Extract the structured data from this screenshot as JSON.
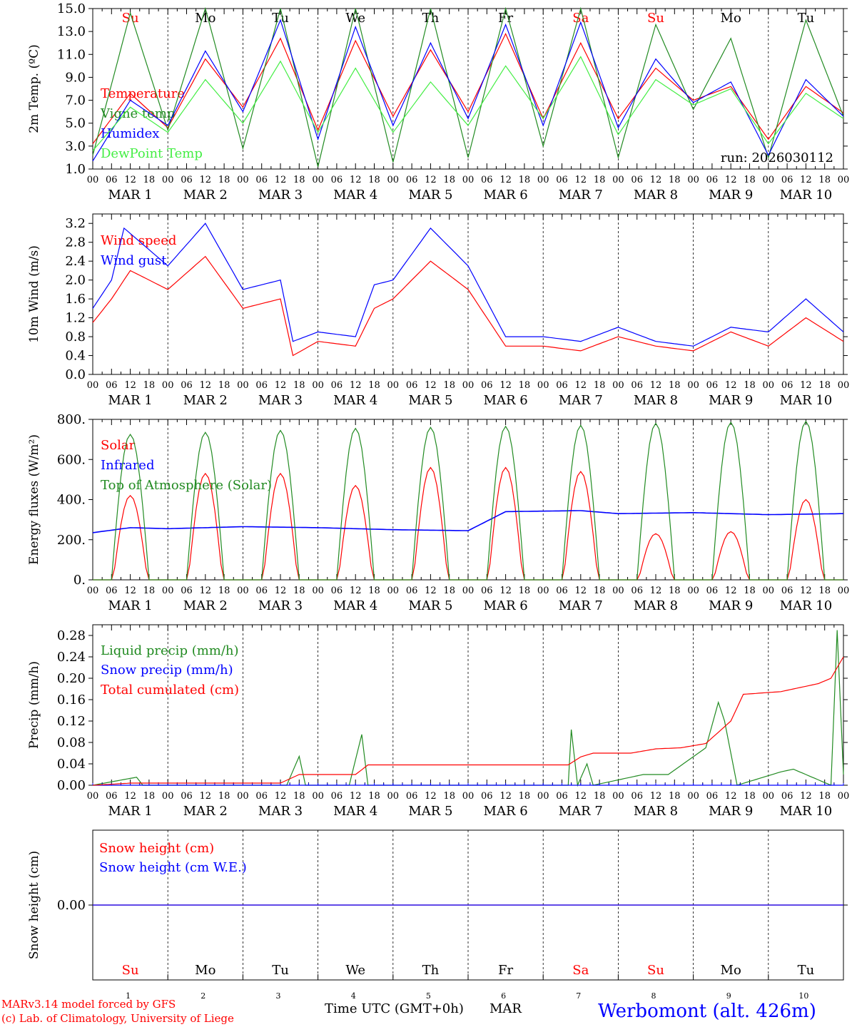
{
  "run_label": "run: 2026030112",
  "footer": {
    "model": "MARv3.14 model forced by GFS",
    "copyright": "(c) Lab. of Climatology, University of Liege",
    "time_axis": "Time UTC (GMT+0h)",
    "month": "MAR",
    "station": "Werbomont (alt. 426m)"
  },
  "days": [
    {
      "num": "1",
      "abbr": "Su",
      "weekend": true
    },
    {
      "num": "2",
      "abbr": "Mo",
      "weekend": false
    },
    {
      "num": "3",
      "abbr": "Tu",
      "weekend": false
    },
    {
      "num": "4",
      "abbr": "We",
      "weekend": false
    },
    {
      "num": "5",
      "abbr": "Th",
      "weekend": false
    },
    {
      "num": "6",
      "abbr": "Fr",
      "weekend": false
    },
    {
      "num": "7",
      "abbr": "Sa",
      "weekend": true
    },
    {
      "num": "8",
      "abbr": "Su",
      "weekend": true
    },
    {
      "num": "9",
      "abbr": "Mo",
      "weekend": false
    },
    {
      "num": "10",
      "abbr": "Tu",
      "weekend": false
    }
  ],
  "hour_ticks": [
    "00",
    "06",
    "12",
    "18"
  ],
  "final_tick": "00",
  "colors": {
    "red": "#ff0000",
    "green": "#228b22",
    "blue": "#0000ff",
    "lightgreen": "#44ee44",
    "black": "#000000"
  },
  "chart_data": [
    {
      "type": "line",
      "ylabel": "2m Temp. (ºC)",
      "ylim": [
        1,
        15
      ],
      "yticks": [
        "1.0",
        "3.0",
        "5.0",
        "7.0",
        "9.0",
        "11.0",
        "13.0",
        "15.0"
      ],
      "series": [
        {
          "name": "Temperature",
          "color": "#ff0000",
          "points": [
            [
              0,
              3.2
            ],
            [
              12,
              7.6
            ],
            [
              24,
              4.6
            ],
            [
              36,
              10.6
            ],
            [
              48,
              6.4
            ],
            [
              60,
              12.4
            ],
            [
              72,
              4.4
            ],
            [
              84,
              12.2
            ],
            [
              96,
              5.6
            ],
            [
              108,
              11.4
            ],
            [
              120,
              6.0
            ],
            [
              132,
              12.8
            ],
            [
              144,
              5.4
            ],
            [
              156,
              12.0
            ],
            [
              168,
              5.4
            ],
            [
              180,
              9.8
            ],
            [
              192,
              7.0
            ],
            [
              204,
              8.2
            ],
            [
              216,
              3.6
            ],
            [
              228,
              8.2
            ],
            [
              240,
              5.9
            ]
          ]
        },
        {
          "name": "Vigne temp",
          "color": "#228b22",
          "points": [
            [
              0,
              2.2
            ],
            [
              12,
              14.6
            ],
            [
              24,
              4.4
            ],
            [
              36,
              15.0
            ],
            [
              48,
              2.8
            ],
            [
              60,
              15.0
            ],
            [
              72,
              1.2
            ],
            [
              84,
              15.0
            ],
            [
              96,
              1.6
            ],
            [
              108,
              15.0
            ],
            [
              120,
              2.0
            ],
            [
              132,
              15.0
            ],
            [
              144,
              3.0
            ],
            [
              156,
              15.0
            ],
            [
              168,
              2.0
            ],
            [
              180,
              13.6
            ],
            [
              192,
              6.2
            ],
            [
              204,
              12.4
            ],
            [
              216,
              2.0
            ],
            [
              228,
              14.0
            ],
            [
              240,
              5.6
            ]
          ]
        },
        {
          "name": "Humidex",
          "color": "#0000ff",
          "points": [
            [
              0,
              1.7
            ],
            [
              12,
              7.0
            ],
            [
              24,
              4.8
            ],
            [
              36,
              11.3
            ],
            [
              48,
              6.0
            ],
            [
              60,
              14.0
            ],
            [
              72,
              3.6
            ],
            [
              84,
              13.4
            ],
            [
              96,
              4.8
            ],
            [
              108,
              12.0
            ],
            [
              120,
              5.4
            ],
            [
              132,
              13.6
            ],
            [
              144,
              4.8
            ],
            [
              156,
              13.8
            ],
            [
              168,
              4.6
            ],
            [
              180,
              10.6
            ],
            [
              192,
              6.8
            ],
            [
              204,
              8.6
            ],
            [
              216,
              2.2
            ],
            [
              228,
              8.8
            ],
            [
              240,
              5.6
            ]
          ]
        },
        {
          "name": "DewPoint Temp",
          "color": "#44ee44",
          "points": [
            [
              0,
              2.6
            ],
            [
              12,
              6.4
            ],
            [
              24,
              4.2
            ],
            [
              36,
              8.8
            ],
            [
              48,
              5.0
            ],
            [
              60,
              10.4
            ],
            [
              72,
              4.2
            ],
            [
              84,
              9.8
            ],
            [
              96,
              4.2
            ],
            [
              108,
              8.6
            ],
            [
              120,
              4.8
            ],
            [
              132,
              10.0
            ],
            [
              144,
              5.4
            ],
            [
              156,
              10.8
            ],
            [
              168,
              4.0
            ],
            [
              180,
              8.8
            ],
            [
              192,
              6.6
            ],
            [
              204,
              8.0
            ],
            [
              216,
              3.2
            ],
            [
              228,
              7.6
            ],
            [
              240,
              5.4
            ]
          ]
        }
      ]
    },
    {
      "type": "line",
      "ylabel": "10m Wind (m/s)",
      "ylim": [
        0,
        3.4
      ],
      "yticks": [
        "0.0",
        "0.4",
        "0.8",
        "1.2",
        "1.6",
        "2.0",
        "2.4",
        "2.8",
        "3.2"
      ],
      "series": [
        {
          "name": "Wind speed",
          "color": "#ff0000",
          "points": [
            [
              0,
              1.1
            ],
            [
              6,
              1.6
            ],
            [
              12,
              2.2
            ],
            [
              24,
              1.8
            ],
            [
              36,
              2.5
            ],
            [
              48,
              1.4
            ],
            [
              60,
              1.6
            ],
            [
              64,
              0.4
            ],
            [
              72,
              0.7
            ],
            [
              84,
              0.6
            ],
            [
              90,
              1.4
            ],
            [
              96,
              1.6
            ],
            [
              108,
              2.4
            ],
            [
              120,
              1.8
            ],
            [
              132,
              0.6
            ],
            [
              144,
              0.6
            ],
            [
              156,
              0.5
            ],
            [
              168,
              0.8
            ],
            [
              180,
              0.6
            ],
            [
              192,
              0.5
            ],
            [
              204,
              0.9
            ],
            [
              216,
              0.6
            ],
            [
              228,
              1.2
            ],
            [
              240,
              0.7
            ]
          ]
        },
        {
          "name": "Wind gust",
          "color": "#0000ff",
          "points": [
            [
              0,
              1.4
            ],
            [
              6,
              2.0
            ],
            [
              10,
              3.1
            ],
            [
              24,
              2.3
            ],
            [
              36,
              3.2
            ],
            [
              48,
              1.8
            ],
            [
              60,
              2.0
            ],
            [
              64,
              0.7
            ],
            [
              72,
              0.9
            ],
            [
              84,
              0.8
            ],
            [
              90,
              1.9
            ],
            [
              96,
              2.0
            ],
            [
              108,
              3.1
            ],
            [
              120,
              2.3
            ],
            [
              132,
              0.8
            ],
            [
              144,
              0.8
            ],
            [
              156,
              0.7
            ],
            [
              168,
              1.0
            ],
            [
              180,
              0.7
            ],
            [
              192,
              0.6
            ],
            [
              204,
              1.0
            ],
            [
              216,
              0.9
            ],
            [
              228,
              1.6
            ],
            [
              240,
              0.9
            ]
          ]
        }
      ]
    },
    {
      "type": "line",
      "ylabel": "Energy fluxes (W/m²)",
      "ylim": [
        0,
        800
      ],
      "yticks": [
        "0.",
        "200.",
        "400.",
        "600.",
        "800."
      ],
      "series": [
        {
          "name": "Solar",
          "color": "#ff0000",
          "peaks": [
            420,
            530,
            530,
            470,
            560,
            560,
            540,
            230,
            240,
            400
          ]
        },
        {
          "name": "Infrared",
          "color": "#0000ff",
          "points": [
            [
              0,
              235
            ],
            [
              12,
              260
            ],
            [
              24,
              255
            ],
            [
              48,
              265
            ],
            [
              72,
              260
            ],
            [
              96,
              250
            ],
            [
              120,
              245
            ],
            [
              132,
              340
            ],
            [
              156,
              345
            ],
            [
              168,
              330
            ],
            [
              192,
              335
            ],
            [
              216,
              325
            ],
            [
              240,
              330
            ]
          ]
        },
        {
          "name": "Top of Atmosphere (Solar)",
          "color": "#228b22",
          "peaks": [
            725,
            735,
            745,
            755,
            760,
            765,
            770,
            780,
            785,
            790
          ]
        }
      ]
    },
    {
      "type": "line",
      "ylabel": "Precip (mm/h)",
      "ylim": [
        0,
        0.3
      ],
      "yticks": [
        "0.00",
        "0.04",
        "0.08",
        "0.12",
        "0.16",
        "0.20",
        "0.24",
        "0.28"
      ],
      "series": [
        {
          "name": "Liquid precip (mm/h)",
          "color": "#228b22",
          "points": [
            [
              0,
              0
            ],
            [
              14,
              0.015
            ],
            [
              16,
              0
            ],
            [
              62,
              0
            ],
            [
              66,
              0.054
            ],
            [
              68,
              0
            ],
            [
              82,
              0
            ],
            [
              86,
              0.095
            ],
            [
              88,
              0
            ],
            [
              152,
              0
            ],
            [
              153,
              0.104
            ],
            [
              155,
              0
            ],
            [
              158,
              0.04
            ],
            [
              160,
              0
            ],
            [
              176,
              0.02
            ],
            [
              184,
              0.02
            ],
            [
              196,
              0.07
            ],
            [
              200,
              0.155
            ],
            [
              202,
              0.12
            ],
            [
              206,
              0
            ],
            [
              220,
              0.025
            ],
            [
              224,
              0.03
            ],
            [
              228,
              0.02
            ],
            [
              236,
              0
            ],
            [
              238,
              0.29
            ],
            [
              240,
              0.02
            ]
          ]
        },
        {
          "name": "Snow precip (mm/h)",
          "color": "#0000ff",
          "points": [
            [
              0,
              0
            ],
            [
              240,
              0
            ]
          ]
        },
        {
          "name": "Total cumulated (cm)",
          "color": "#ff0000",
          "points": [
            [
              0,
              0
            ],
            [
              12,
              0.004
            ],
            [
              60,
              0.004
            ],
            [
              66,
              0.02
            ],
            [
              84,
              0.02
            ],
            [
              88,
              0.038
            ],
            [
              152,
              0.038
            ],
            [
              156,
              0.053
            ],
            [
              160,
              0.06
            ],
            [
              172,
              0.06
            ],
            [
              180,
              0.068
            ],
            [
              188,
              0.07
            ],
            [
              196,
              0.078
            ],
            [
              204,
              0.12
            ],
            [
              208,
              0.17
            ],
            [
              220,
              0.175
            ],
            [
              232,
              0.19
            ],
            [
              236,
              0.2
            ],
            [
              240,
              0.24
            ]
          ]
        }
      ]
    },
    {
      "type": "line",
      "ylabel": "Snow height (cm)",
      "ylim": [
        -1,
        1
      ],
      "yticks": [
        "0.00"
      ],
      "series": [
        {
          "name": "Snow height (cm)",
          "color": "#ff0000",
          "points": [
            [
              0,
              0
            ],
            [
              240,
              0
            ]
          ]
        },
        {
          "name": "Snow height (cm W.E.)",
          "color": "#0000ff",
          "points": [
            [
              0,
              0
            ],
            [
              240,
              0
            ]
          ]
        }
      ]
    }
  ]
}
